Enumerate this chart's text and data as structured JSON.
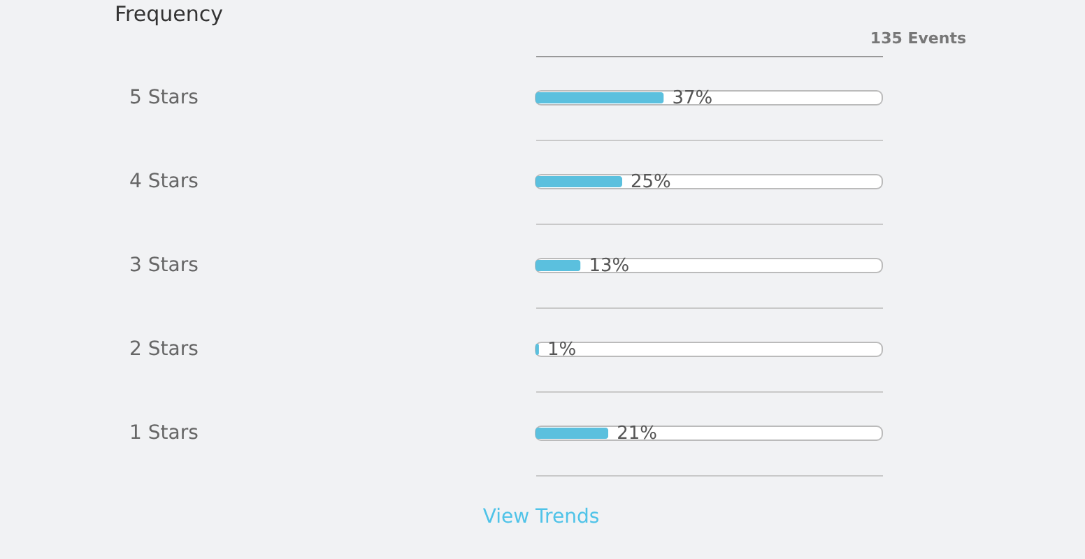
{
  "chart_data": {
    "type": "bar",
    "orientation": "horizontal",
    "title": "Frequency",
    "subtitle": "135 Events",
    "categories": [
      "5 Stars",
      "4 Stars",
      "3 Stars",
      "2 Stars",
      "1 Stars"
    ],
    "values": [
      37,
      25,
      13,
      1,
      21
    ],
    "value_labels": [
      "37%",
      "25%",
      "13%",
      "1%",
      "21%"
    ],
    "color": "#5bc0de",
    "xlim": [
      0,
      100
    ],
    "grid": "y",
    "tick_labels": "y",
    "annotations": [
      "View Trends"
    ]
  }
}
